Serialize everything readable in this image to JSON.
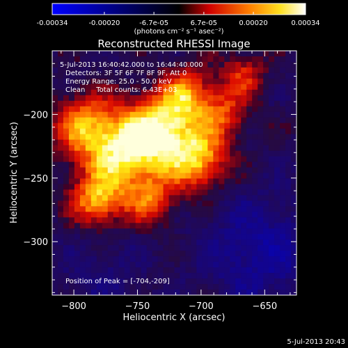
{
  "colorbar": {
    "ticks": [
      "-0.00034",
      "-0.00020",
      "-6.7e-05",
      "6.7e-05",
      "0.00020",
      "0.00034"
    ],
    "tick_values": [
      -0.00034,
      -0.0002,
      -6.7e-05,
      6.7e-05,
      0.0002,
      0.00034
    ],
    "range": [
      -0.00034,
      0.00034
    ],
    "units": "(photons cm⁻² s⁻¹ asec⁻²)",
    "colors": [
      "#0000ff",
      "#000000",
      "#ff0000",
      "#ff8000",
      "#ffff00",
      "#ffffff"
    ]
  },
  "chart_data": {
    "type": "heatmap",
    "title": "Reconstructed RHESSI Image",
    "xlabel": "Heliocentric X (arcsec)",
    "ylabel": "Heliocentric Y (arcsec)",
    "xlim": [
      -817,
      -625
    ],
    "ylim": [
      -342,
      -150
    ],
    "x_ticks": [
      -800,
      -750,
      -700,
      -650
    ],
    "x_tick_labels": [
      "−800",
      "−750",
      "−700",
      "−650"
    ],
    "y_ticks": [
      -200,
      -250,
      -300
    ],
    "y_tick_labels": [
      "−200",
      "−250",
      "−300"
    ],
    "peak_position": [
      -704,
      -209
    ],
    "grid": false,
    "annotations": [
      "5-Jul-2013 16:40:42.000 to 16:44:40.000",
      "Detectors: 3F 5F 6F 7F 8F 9F, Att 0",
      "Energy Range: 25.0 - 50.0 keV",
      "Clean     Total counts: 6.43E+03",
      "Position of Peak = [-704,-209]"
    ]
  },
  "footer": {
    "timestamp": "5-Jul-2013 20:43"
  }
}
